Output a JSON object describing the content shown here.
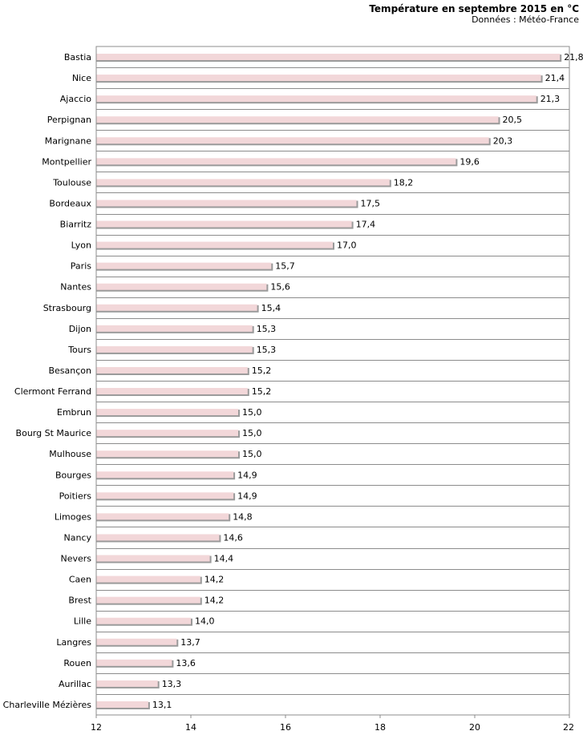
{
  "chart_data": {
    "type": "bar",
    "orientation": "horizontal",
    "title": "Température en septembre 2015 en °C",
    "subtitle": "Données : Météo-France",
    "categories": [
      "Bastia",
      "Nice",
      "Ajaccio",
      "Perpignan",
      "Marignane",
      "Montpellier",
      "Toulouse",
      "Bordeaux",
      "Biarritz",
      "Lyon",
      "Paris",
      "Nantes",
      "Strasbourg",
      "Dijon",
      "Tours",
      "Besançon",
      "Clermont Ferrand",
      "Embrun",
      "Bourg St Maurice",
      "Mulhouse",
      "Bourges",
      "Poitiers",
      "Limoges",
      "Nancy",
      "Nevers",
      "Caen",
      "Brest",
      "Lille",
      "Langres",
      "Rouen",
      "Aurillac",
      "Charleville Mézières"
    ],
    "values": [
      21.8,
      21.4,
      21.3,
      20.5,
      20.3,
      19.6,
      18.2,
      17.5,
      17.4,
      17.0,
      15.7,
      15.6,
      15.4,
      15.3,
      15.3,
      15.2,
      15.2,
      15.0,
      15.0,
      15.0,
      14.9,
      14.9,
      14.8,
      14.6,
      14.4,
      14.2,
      14.2,
      14.0,
      13.7,
      13.6,
      13.3,
      13.1
    ],
    "value_labels": [
      "21,8",
      "21,4",
      "21,3",
      "20,5",
      "20,3",
      "19,6",
      "18,2",
      "17,5",
      "17,4",
      "17,0",
      "15,7",
      "15,6",
      "15,4",
      "15,3",
      "15,3",
      "15,2",
      "15,2",
      "15,0",
      "15,0",
      "15,0",
      "14,9",
      "14,9",
      "14,8",
      "14,6",
      "14,4",
      "14,2",
      "14,2",
      "14,0",
      "13,7",
      "13,6",
      "13,3",
      "13,1"
    ],
    "xlim": [
      12,
      22
    ],
    "xticks": [
      "12",
      "14",
      "16",
      "18",
      "20",
      "22"
    ],
    "xtick_values": [
      12,
      14,
      16,
      18,
      20,
      22
    ],
    "grid": true,
    "bar_color": "#f2d7d9",
    "bar_shadow_color": "#9a9a9a",
    "grid_color": "#8c8c8c"
  }
}
